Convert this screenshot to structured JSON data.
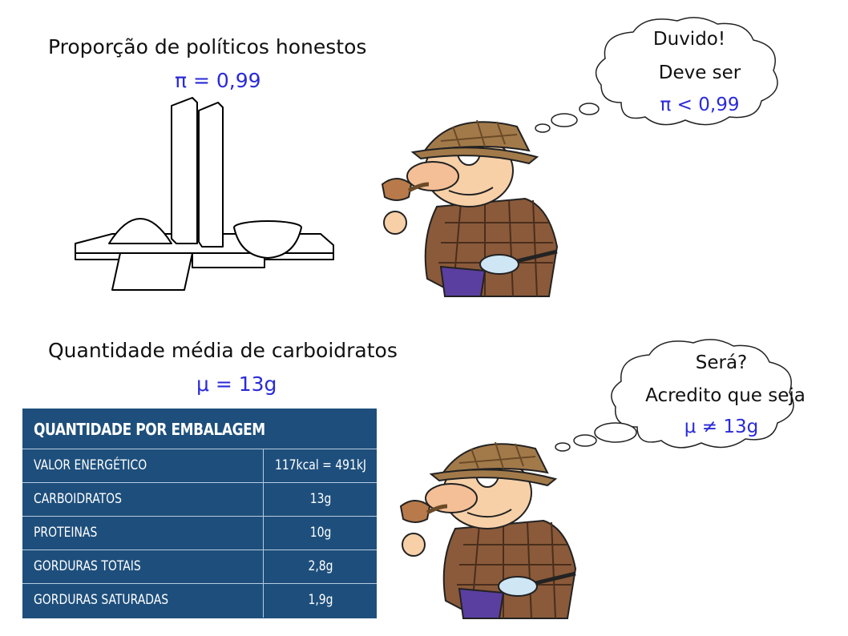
{
  "top": {
    "heading": "Proporção de políticos honestos",
    "param": "π = 0,99",
    "bubble": {
      "line1": "Duvido!",
      "line2": "Deve ser",
      "line3": "π < 0,99"
    }
  },
  "bottom": {
    "heading": "Quantidade média de carboidratos",
    "param": "μ = 13g",
    "bubble": {
      "line1": "Será?",
      "line2": "Acredito que seja",
      "line3": "μ ≠ 13g"
    }
  },
  "nutrition": {
    "title": "QUANTIDADE POR EMBALAGEM",
    "rows": [
      {
        "name": "VALOR ENERGÉTICO",
        "value": "117kcal = 491kJ"
      },
      {
        "name": "CARBOIDRATOS",
        "value": "13g"
      },
      {
        "name": "PROTEINAS",
        "value": "10g"
      },
      {
        "name": "GORDURAS TOTAIS",
        "value": "2,8g"
      },
      {
        "name": "GORDURAS SATURADAS",
        "value": "1,9g"
      }
    ]
  },
  "colors": {
    "param": "#2a2ad8",
    "table_bg": "#1e4f7c",
    "coat": "#8a5a3a",
    "trousers": "#5a3fa0"
  },
  "icons": [
    "congress-building-drawing",
    "detective-cartoon",
    "thought-cloud"
  ]
}
